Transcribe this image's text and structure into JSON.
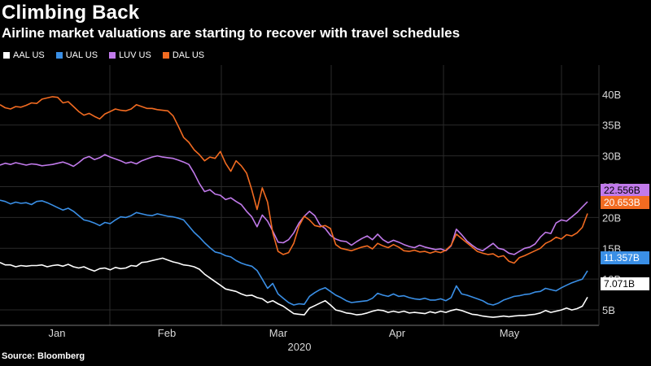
{
  "title": "Climbing Back",
  "subtitle": "Airline market valuations are starting to recover with travel schedules",
  "source": "Source: Bloomberg",
  "chart_data": {
    "type": "line",
    "xlabel": "2020",
    "x_ticks": [
      "Jan",
      "Feb",
      "Mar",
      "Apr",
      "May"
    ],
    "y_ticks": [
      "5B",
      "10B",
      "15B",
      "20B",
      "25B",
      "30B",
      "35B",
      "40B"
    ],
    "ylim": [
      2.5,
      43
    ],
    "grid": true,
    "legend_position": "top-left",
    "series": [
      {
        "name": "AAL US",
        "color": "#ffffff",
        "last_label": "7.071B",
        "values": [
          12.7,
          12.3,
          12.3,
          12.0,
          12.2,
          12.1,
          12.2,
          12.2,
          12.3,
          12.0,
          12.2,
          12.3,
          12.1,
          12.4,
          12.0,
          11.8,
          12.0,
          11.6,
          11.3,
          11.7,
          11.8,
          11.5,
          11.9,
          11.7,
          11.8,
          12.2,
          12.1,
          12.7,
          12.8,
          13.0,
          13.2,
          13.4,
          13.1,
          12.8,
          12.6,
          12.3,
          12.2,
          12.0,
          11.6,
          10.8,
          10.2,
          9.6,
          9.0,
          8.4,
          8.2,
          8.0,
          7.6,
          7.3,
          7.4,
          7.0,
          6.8,
          6.2,
          6.5,
          6.0,
          5.6,
          5.0,
          4.4,
          4.3,
          4.2,
          5.3,
          5.7,
          6.1,
          6.5,
          5.8,
          5.0,
          4.8,
          4.5,
          4.4,
          4.2,
          4.3,
          4.5,
          4.8,
          5.0,
          4.9,
          4.6,
          4.8,
          4.6,
          4.8,
          4.5,
          4.6,
          4.5,
          4.4,
          4.7,
          4.5,
          4.8,
          4.6,
          4.9,
          5.1,
          4.9,
          4.6,
          4.3,
          4.2,
          4.0,
          3.9,
          3.8,
          3.9,
          4.0,
          3.9,
          4.0,
          4.1,
          4.1,
          4.2,
          4.3,
          4.5,
          4.9,
          4.6,
          4.8,
          5.0,
          5.3,
          5.0,
          5.2,
          5.6,
          7.071
        ]
      },
      {
        "name": "UAL US",
        "color": "#3a8fe6",
        "last_label": "11.357B",
        "values": [
          22.8,
          22.6,
          22.2,
          22.5,
          22.3,
          22.4,
          22.1,
          22.6,
          22.7,
          22.4,
          22.0,
          21.6,
          21.2,
          21.5,
          21.0,
          20.3,
          19.6,
          19.4,
          19.1,
          18.7,
          19.2,
          19.0,
          19.6,
          20.1,
          20.0,
          20.3,
          20.8,
          20.6,
          20.4,
          20.3,
          20.6,
          20.4,
          20.2,
          20.1,
          19.9,
          19.6,
          18.6,
          17.6,
          16.8,
          15.9,
          15.1,
          14.4,
          14.2,
          13.8,
          13.6,
          13.0,
          12.6,
          12.3,
          12.1,
          11.4,
          10.0,
          8.5,
          9.3,
          7.6,
          6.9,
          6.2,
          5.8,
          6.0,
          5.9,
          7.2,
          7.8,
          8.3,
          8.6,
          8.0,
          7.4,
          7.0,
          6.5,
          6.2,
          6.3,
          6.4,
          6.5,
          6.9,
          7.7,
          7.4,
          7.2,
          7.6,
          7.2,
          7.3,
          7.0,
          6.8,
          6.7,
          6.9,
          6.6,
          6.6,
          6.8,
          6.5,
          7.0,
          8.9,
          7.6,
          7.4,
          7.1,
          6.8,
          6.5,
          6.0,
          5.8,
          6.1,
          6.6,
          6.9,
          7.2,
          7.3,
          7.5,
          7.6,
          7.9,
          8.0,
          8.5,
          8.3,
          8.1,
          8.6,
          9.0,
          9.4,
          9.7,
          10.0,
          11.357
        ]
      },
      {
        "name": "LUV US",
        "color": "#c17aeb",
        "last_label": "22.556B",
        "values": [
          28.5,
          28.8,
          28.6,
          28.9,
          28.7,
          28.5,
          28.7,
          28.6,
          28.4,
          28.5,
          28.6,
          28.8,
          29.0,
          28.7,
          28.3,
          28.9,
          29.6,
          29.9,
          29.4,
          29.7,
          30.2,
          29.8,
          29.5,
          29.2,
          28.8,
          29.0,
          28.7,
          29.2,
          29.5,
          29.8,
          30.0,
          29.8,
          29.7,
          29.6,
          29.3,
          29.0,
          28.6,
          27.2,
          25.5,
          24.2,
          24.5,
          23.8,
          23.6,
          22.9,
          23.2,
          22.6,
          22.1,
          21.0,
          20.1,
          18.5,
          20.4,
          19.4,
          17.8,
          16.0,
          15.9,
          16.4,
          17.5,
          19.1,
          20.2,
          21.0,
          20.3,
          18.8,
          18.2,
          17.1,
          16.5,
          16.2,
          16.1,
          15.5,
          16.1,
          16.6,
          17.0,
          16.4,
          17.3,
          16.4,
          15.9,
          16.3,
          16.0,
          15.6,
          15.3,
          15.1,
          15.5,
          15.2,
          15.0,
          14.8,
          14.9,
          14.6,
          15.4,
          18.1,
          17.2,
          16.2,
          15.5,
          14.9,
          14.6,
          15.2,
          15.8,
          15.0,
          14.8,
          14.2,
          14.0,
          14.5,
          15.0,
          15.2,
          15.7,
          16.8,
          17.6,
          17.4,
          19.1,
          19.6,
          19.4,
          20.1,
          20.8,
          21.7,
          22.556
        ]
      },
      {
        "name": "DAL US",
        "color": "#f26b21",
        "last_label": "20.653B",
        "values": [
          38.3,
          37.8,
          37.6,
          38.0,
          37.9,
          38.2,
          38.6,
          38.5,
          39.2,
          39.4,
          39.6,
          39.5,
          38.6,
          38.8,
          38.0,
          37.2,
          36.6,
          36.9,
          36.4,
          36.0,
          36.8,
          37.2,
          37.6,
          37.4,
          37.3,
          37.6,
          38.3,
          38.0,
          37.7,
          37.7,
          37.5,
          37.4,
          37.3,
          36.5,
          34.8,
          33.0,
          32.2,
          31.0,
          30.2,
          29.2,
          29.8,
          29.6,
          30.7,
          28.8,
          27.5,
          29.2,
          28.4,
          27.2,
          24.5,
          21.3,
          24.8,
          22.5,
          17.5,
          14.5,
          14.0,
          14.3,
          15.8,
          18.6,
          20.2,
          19.6,
          18.7,
          18.5,
          18.7,
          18.2,
          15.6,
          15.0,
          14.8,
          14.6,
          14.9,
          15.2,
          15.4,
          14.9,
          15.8,
          15.4,
          15.1,
          15.6,
          15.2,
          14.6,
          14.5,
          14.7,
          14.4,
          14.5,
          14.2,
          14.5,
          14.3,
          14.7,
          15.5,
          17.3,
          16.6,
          15.9,
          15.2,
          14.5,
          14.2,
          14.0,
          14.1,
          13.6,
          13.8,
          12.9,
          12.6,
          13.5,
          13.8,
          14.2,
          14.6,
          15.0,
          15.8,
          16.2,
          16.8,
          16.5,
          17.2,
          17.0,
          17.5,
          18.4,
          20.653
        ]
      }
    ]
  }
}
